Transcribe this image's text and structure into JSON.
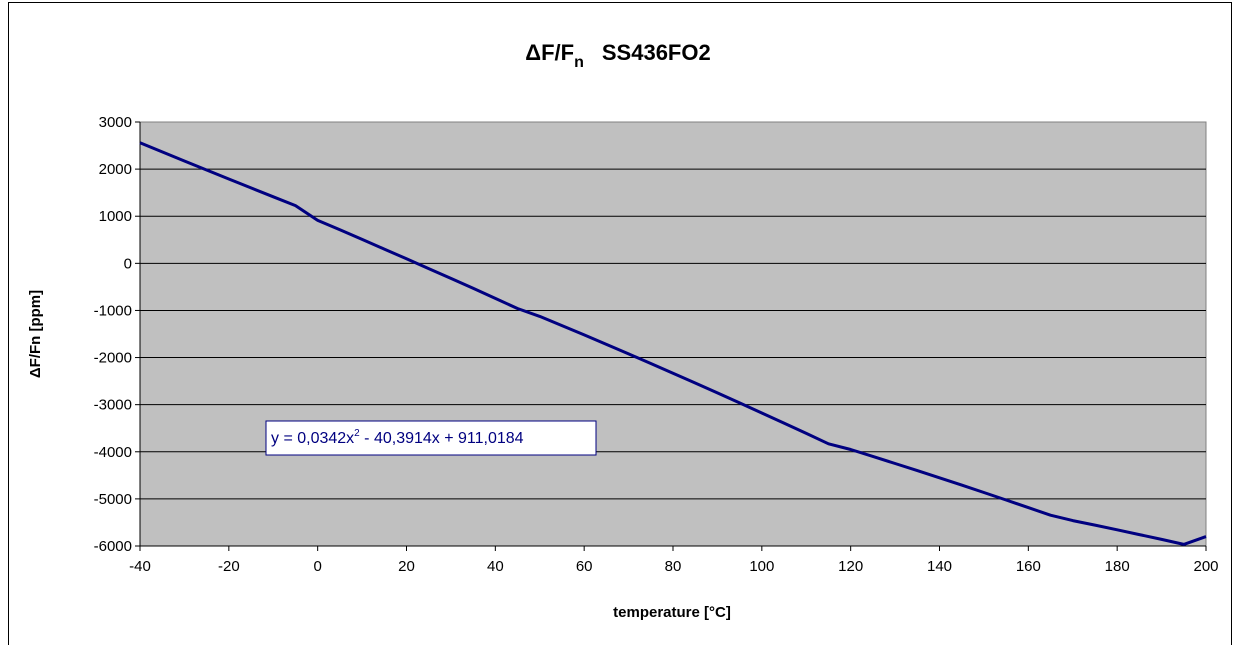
{
  "chart_data": {
    "type": "line",
    "title": {
      "main": "ΔF/F",
      "subscript": "n",
      "suffix": "SS436FO2"
    },
    "xlabel": "temperature [°C]",
    "ylabel": "ΔF/Fn [ppm]",
    "xlim": [
      -40,
      200
    ],
    "ylim": [
      -6000,
      3000
    ],
    "x_ticks": [
      -40,
      -20,
      0,
      20,
      40,
      60,
      80,
      100,
      120,
      140,
      160,
      180,
      200
    ],
    "y_ticks": [
      3000,
      2000,
      1000,
      0,
      -1000,
      -2000,
      -3000,
      -4000,
      -5000,
      -6000
    ],
    "grid": "horizontal",
    "legend": "none",
    "plot_background": "#c0c0c0",
    "line_color": "#000080",
    "series": [
      {
        "x": [
          -40,
          -35,
          -30,
          -25,
          -20,
          -15,
          -10,
          -5,
          0,
          5,
          10,
          15,
          20,
          25,
          30,
          35,
          40,
          45,
          50,
          55,
          60,
          65,
          70,
          75,
          80,
          85,
          90,
          95,
          100,
          105,
          110,
          115,
          120,
          125,
          130,
          135,
          140,
          145,
          150,
          155,
          160,
          165,
          170,
          175,
          180,
          185,
          190,
          195,
          200
        ],
        "y": [
          2561,
          2366,
          2173,
          1982,
          1791,
          1602,
          1413,
          1226,
          911,
          711,
          508,
          303,
          96,
          -111,
          -320,
          -531,
          -744,
          -959,
          -1126,
          -1322,
          -1520,
          -1720,
          -1922,
          -2126,
          -2332,
          -2540,
          -2750,
          -2962,
          -3176,
          -3392,
          -3610,
          -3830,
          -3952,
          -4099,
          -4248,
          -4399,
          -4552,
          -4707,
          -4864,
          -5023,
          -5184,
          -5347,
          -5460,
          -5557,
          -5656,
          -5757,
          -5860,
          -5965,
          -5800
        ]
      }
    ],
    "trendline_equation": {
      "prefix": "y = 0,0342x",
      "exponent": "2",
      "suffix": " - 40,3914x + 911,0184"
    }
  }
}
